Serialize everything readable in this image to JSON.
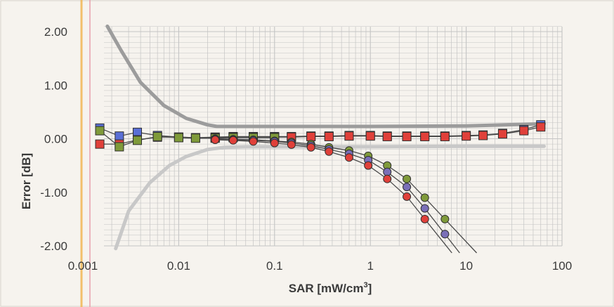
{
  "chart_data": {
    "type": "scatter",
    "title": "",
    "xlabel": "SAR [mW/cm",
    "xlabel_superscript": "3",
    "xlabel_suffix": "]",
    "ylabel": "Error [dB]",
    "x_scale": "log",
    "xlim": [
      0.001,
      100
    ],
    "ylim": [
      -2.0,
      2.2
    ],
    "x_ticks": [
      "0.001",
      "0.01",
      "0.1",
      "1",
      "10",
      "100"
    ],
    "y_ticks": [
      "2.00",
      "1.00",
      "0.00",
      "-1.00",
      "-2.00"
    ],
    "grid": true,
    "legend": "none",
    "colors": {
      "upper_bound": "#9c9c9c",
      "lower_bound": "#c8c8c8",
      "blue": "#5a6fd6",
      "green": "#7f9a3a",
      "purple": "#7a6fb8",
      "red": "#e0403a",
      "marker_edge": "#303030",
      "grid": "#c4c4c4"
    },
    "series": [
      {
        "marker": "line",
        "color": "upper_bound",
        "x": [
          0.0018,
          0.0025,
          0.004,
          0.007,
          0.012,
          0.02,
          0.025,
          0.05,
          0.1,
          1,
          10,
          65
        ],
        "y": [
          2.1,
          1.65,
          1.05,
          0.62,
          0.38,
          0.26,
          0.23,
          0.23,
          0.23,
          0.23,
          0.24,
          0.28
        ]
      },
      {
        "marker": "line",
        "color": "lower_bound",
        "x": [
          0.0022,
          0.003,
          0.005,
          0.008,
          0.012,
          0.02,
          0.03,
          0.05,
          0.1,
          1,
          10,
          65
        ],
        "y": [
          -2.05,
          -1.35,
          -0.82,
          -0.5,
          -0.33,
          -0.2,
          -0.16,
          -0.15,
          -0.15,
          -0.15,
          -0.14,
          -0.14
        ]
      },
      {
        "marker": "square",
        "color": "blue",
        "x": [
          0.0015,
          0.0024,
          0.0037,
          0.006,
          0.01,
          0.015,
          0.024,
          0.037,
          0.06,
          0.1,
          0.15,
          0.24,
          0.37,
          0.6,
          1,
          1.5,
          2.4,
          3.7,
          6,
          10,
          15,
          24,
          40,
          60
        ],
        "y": [
          0.2,
          0.05,
          0.12,
          0.06,
          0.03,
          0.02,
          0.03,
          0.04,
          0.04,
          0.04,
          0.04,
          0.05,
          0.05,
          0.06,
          0.06,
          0.05,
          0.05,
          0.05,
          0.05,
          0.06,
          0.07,
          0.1,
          0.17,
          0.26
        ]
      },
      {
        "marker": "square",
        "color": "red",
        "x": [
          0.0015,
          0.0024,
          0.0037,
          0.006,
          0.01,
          0.015,
          0.024,
          0.037,
          0.06,
          0.1,
          0.15,
          0.24,
          0.37,
          0.6,
          1,
          1.5,
          2.4,
          3.7,
          6,
          10,
          15,
          24,
          40,
          60
        ],
        "y": [
          -0.1,
          -0.1,
          -0.02,
          0.03,
          0.03,
          0.02,
          0.02,
          0.03,
          0.03,
          0.03,
          0.03,
          0.04,
          0.04,
          0.05,
          0.05,
          0.04,
          0.04,
          0.04,
          0.04,
          0.05,
          0.06,
          0.09,
          0.15,
          0.22
        ]
      },
      {
        "marker": "square",
        "color": "green",
        "x": [
          0.0015,
          0.0024,
          0.0037,
          0.006,
          0.01,
          0.015,
          0.024,
          0.037,
          0.06,
          0.1
        ],
        "y": [
          0.15,
          -0.15,
          -0.03,
          0.04,
          0.02,
          0.01,
          0.01,
          0.02,
          0.02,
          0.02
        ]
      },
      {
        "marker": "circle",
        "color": "green",
        "x": [
          0.024,
          0.037,
          0.06,
          0.1,
          0.15,
          0.24,
          0.37,
          0.6,
          0.95,
          1.5,
          2.4,
          3.7,
          6
        ],
        "y": [
          0.0,
          -0.01,
          -0.02,
          -0.04,
          -0.06,
          -0.1,
          -0.16,
          -0.22,
          -0.32,
          -0.5,
          -0.75,
          -1.1,
          -1.5
        ]
      },
      {
        "marker": "circle",
        "color": "purple",
        "x": [
          0.024,
          0.037,
          0.06,
          0.1,
          0.15,
          0.24,
          0.37,
          0.6,
          0.95,
          1.5,
          2.4,
          3.7,
          6
        ],
        "y": [
          -0.01,
          -0.02,
          -0.03,
          -0.05,
          -0.08,
          -0.13,
          -0.2,
          -0.28,
          -0.4,
          -0.62,
          -0.9,
          -1.3,
          -1.78
        ]
      },
      {
        "marker": "circle",
        "color": "red",
        "x": [
          0.024,
          0.037,
          0.06,
          0.1,
          0.15,
          0.24,
          0.37,
          0.6,
          0.95,
          1.5,
          2.4,
          3.7
        ],
        "y": [
          -0.02,
          -0.03,
          -0.05,
          -0.08,
          -0.11,
          -0.16,
          -0.24,
          -0.35,
          -0.5,
          -0.75,
          -1.08,
          -1.5
        ]
      }
    ]
  }
}
